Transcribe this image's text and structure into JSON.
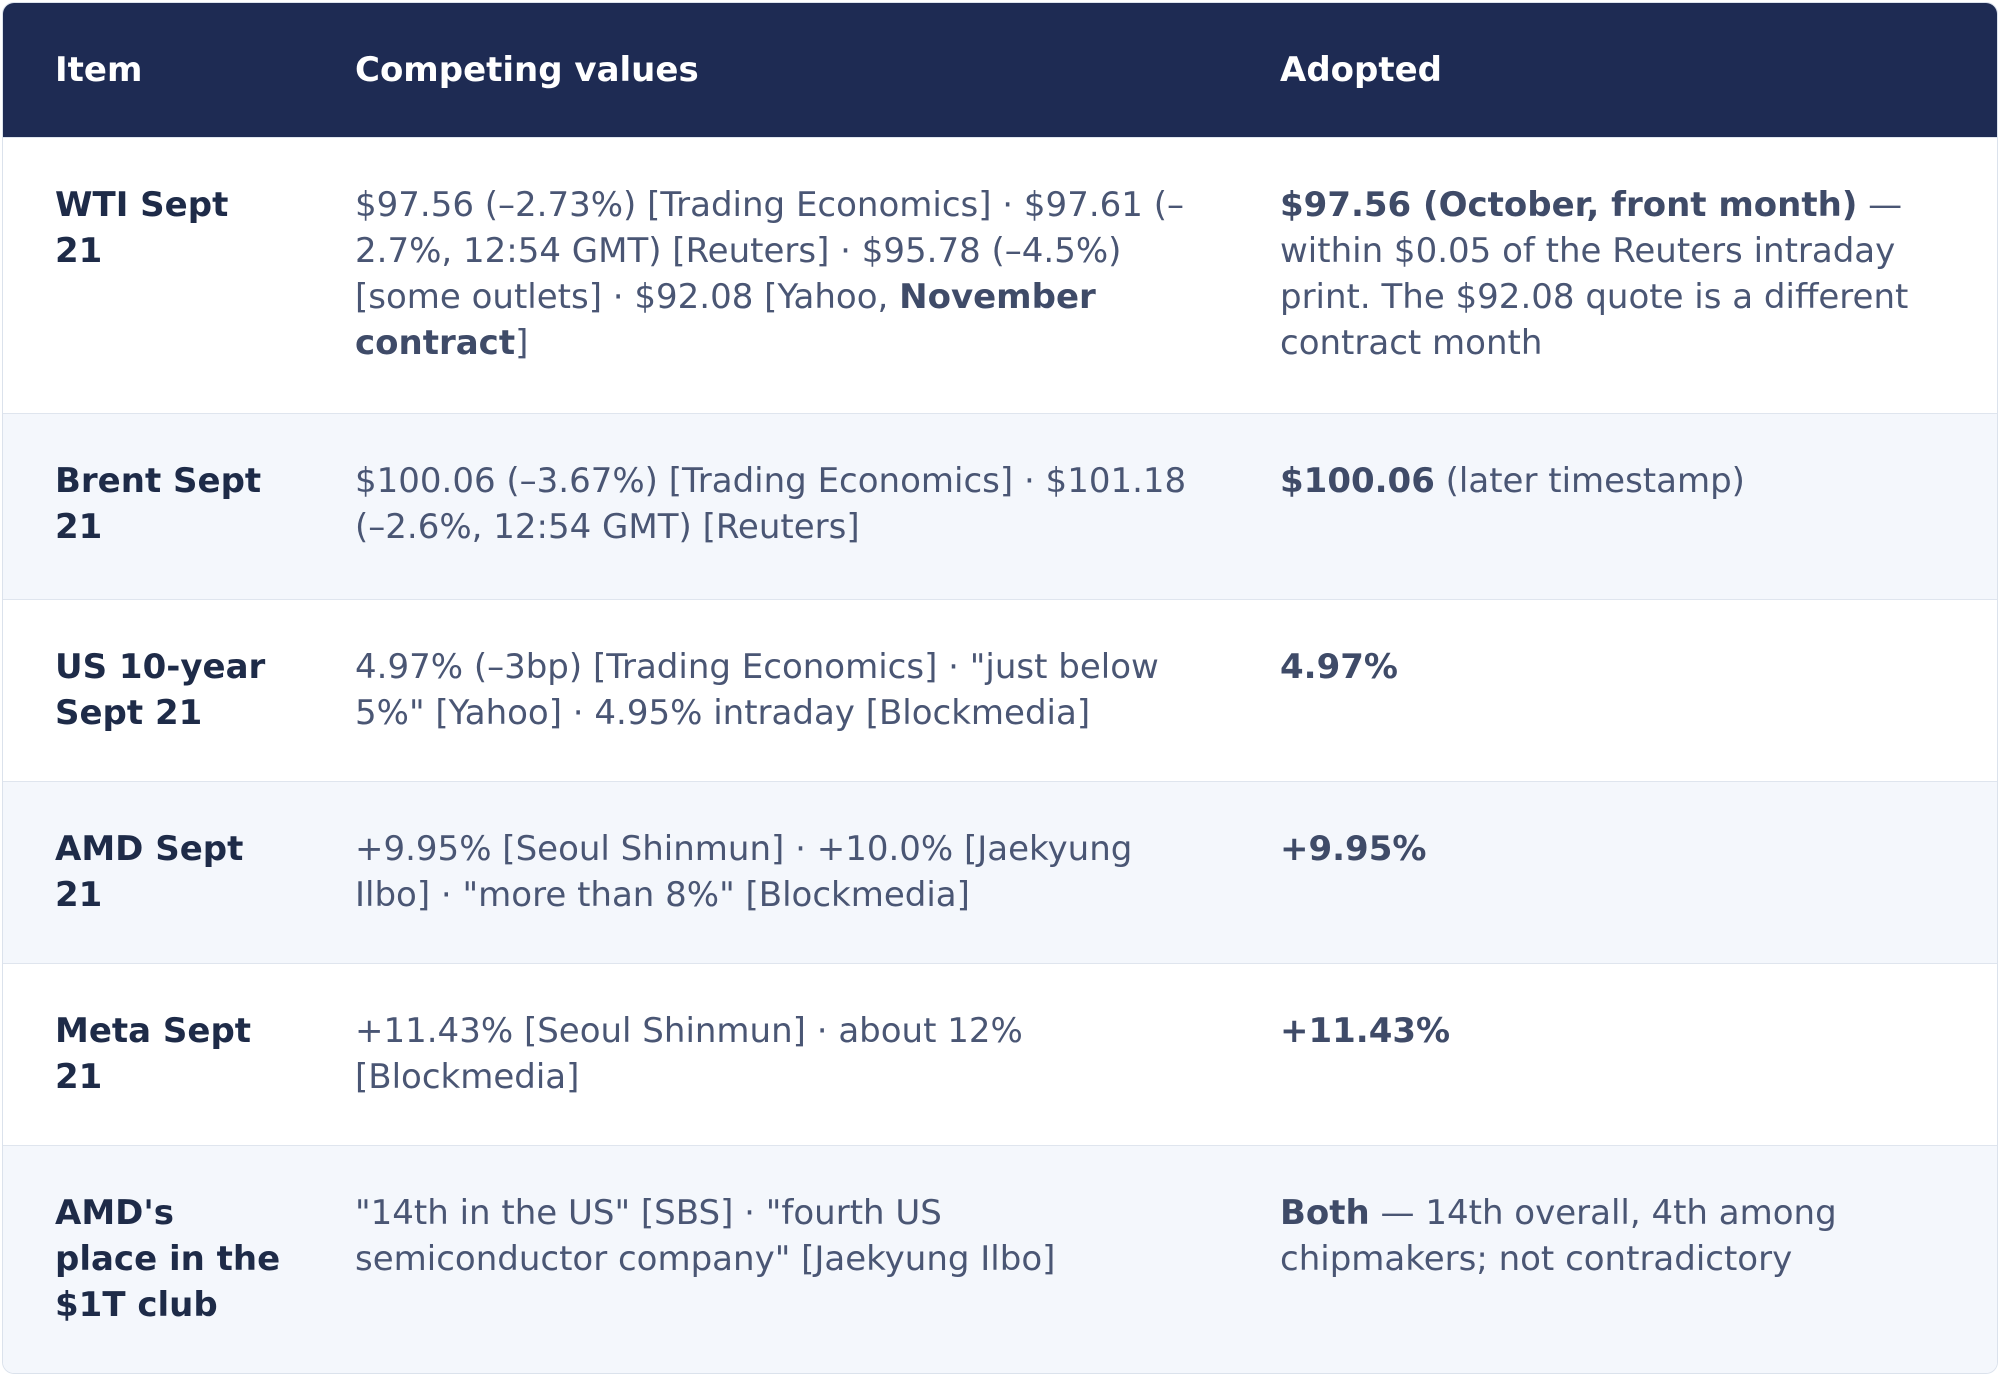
{
  "headers": {
    "item": "Item",
    "competing": "Competing values",
    "adopted": "Adopted"
  },
  "rows": [
    {
      "item": "WTI Sept 21",
      "competing_a": "$97.56 (–2.73%) [Trading Economics] · $97.61 (–2.7%, 12:54 GMT) [Reuters] · $95.78 (–4.5%) [some outlets] · $92.08 [Yahoo, ",
      "competing_b": "November contract",
      "competing_c": "]",
      "adopted_bold": "$97.56 (October, front month)",
      "adopted_rest": " — within $0.05 of the Reuters intraday print. The $92.08 quote is a different contract month"
    },
    {
      "item": "Brent Sept 21",
      "competing": "$100.06 (–3.67%) [Trading Economics] · $101.18 (–2.6%, 12:54 GMT) [Reuters]",
      "adopted_bold": "$100.06",
      "adopted_rest": " (later timestamp)"
    },
    {
      "item": "US 10-year Sept 21",
      "competing": "4.97% (–3bp) [Trading Economics] · \"just below 5%\" [Yahoo] · 4.95% intraday [Blockmedia]",
      "adopted_bold": "4.97%"
    },
    {
      "item": "AMD Sept 21",
      "competing": "+9.95% [Seoul Shinmun] · +10.0% [Jaekyung Ilbo] · \"more than 8%\" [Blockmedia]",
      "adopted_bold": "+9.95%"
    },
    {
      "item": "Meta Sept 21",
      "competing": "+11.43% [Seoul Shinmun] · about 12% [Blockmedia]",
      "adopted_bold": "+11.43%"
    },
    {
      "item": "AMD's place in the $1T club",
      "competing": "\"14th in the US\" [SBS] · \"fourth US semiconductor company\" [Jaekyung Ilbo]",
      "adopted_bold": "Both",
      "adopted_rest": " — 14th overall, 4th among chipmakers; not contradictory"
    }
  ]
}
